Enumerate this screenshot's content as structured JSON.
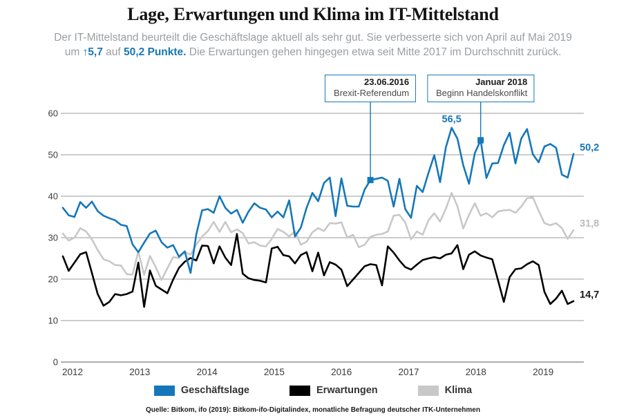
{
  "title": "Lage, Erwartungen und Klima im IT-Mittelstand",
  "subtitle": {
    "line1": "Der IT-Mittelstand beurteilt die Geschäftslage aktuell als sehr gut. Sie verbesserte sich von April auf Mai 2019",
    "line2_prefix": "um ",
    "line2_highlight1": "↑5,7",
    "line2_mid": " auf ",
    "line2_highlight2": "50,2 Punkte.",
    "line2_suffix": " Die Erwartungen gehen hingegen etwa seit Mitte 2017 im Durchschnitt zurück."
  },
  "annotations": [
    {
      "date": "23.06.2016",
      "label": "Brexit-Referendum",
      "month_index": 53,
      "series": "Geschäftslage",
      "value": 43.9
    },
    {
      "date": "Januar 2018",
      "label": "Beginn Handelskonflikt",
      "month_index": 72,
      "series": "Geschäftslage",
      "value": 53.5
    }
  ],
  "legend": [
    {
      "label": "Geschäftslage",
      "color": "#1577b9"
    },
    {
      "label": "Erwartungen",
      "color": "#000000"
    },
    {
      "label": "Klima",
      "color": "#c8c8c8"
    }
  ],
  "source": "Quelle: Bitkom, ifo (2019): Bitkom-ifo-Digitalindex, monatliche Befragung deutscher ITK-Unternehmen",
  "colors": {
    "accent_blue": "#1577b9",
    "grid": "#999999",
    "baseline": "#b0b0b0",
    "tick_text": "#3a3a3a"
  },
  "chart_data": {
    "type": "line",
    "frequency": "monthly",
    "x_start": "2012-01",
    "x_end": "2019-05",
    "x_tick_labels": [
      "2012",
      "2013",
      "2014",
      "2015",
      "2016",
      "2017",
      "2018",
      "2019"
    ],
    "ylim": [
      0,
      60
    ],
    "yticks": [
      0,
      10,
      20,
      30,
      40,
      50,
      60
    ],
    "grid": "horizontal",
    "legend_position": "bottom",
    "peak_label": {
      "text": "56,5",
      "series": "Geschäftslage",
      "month_index": 67,
      "value": 56.5
    },
    "series": [
      {
        "name": "Geschäftslage",
        "color": "#1577b9",
        "end_label": "50,2",
        "end_label_color": "#1577b9",
        "values": [
          37.2,
          35.4,
          35.0,
          38.6,
          37.2,
          38.7,
          36.4,
          35.3,
          34.7,
          34.2,
          33.1,
          32.8,
          28.4,
          26.5,
          28.8,
          31.0,
          31.7,
          28.9,
          27.6,
          28.2,
          25.4,
          26.7,
          21.5,
          30.8,
          36.6,
          36.9,
          36.0,
          40.0,
          37.2,
          35.8,
          36.7,
          33.6,
          36.3,
          38.3,
          37.2,
          36.8,
          34.9,
          36.3,
          34.9,
          39.0,
          30.3,
          32.4,
          37.2,
          40.8,
          38.8,
          43.2,
          44.5,
          35.2,
          44.3,
          37.7,
          37.5,
          37.5,
          41.6,
          43.9,
          44.2,
          44.5,
          43.7,
          37.5,
          44.2,
          36.9,
          34.8,
          42.5,
          41.0,
          45.6,
          49.9,
          43.4,
          51.8,
          56.5,
          53.9,
          47.5,
          43.0,
          50.4,
          53.5,
          44.4,
          47.9,
          48.0,
          52.3,
          55.3,
          47.9,
          53.9,
          56.2,
          50.1,
          48.2,
          52.0,
          52.6,
          51.7,
          45.2,
          44.5,
          50.2
        ]
      },
      {
        "name": "Erwartungen",
        "color": "#000000",
        "end_label": "14,7",
        "end_label_color": "#1a1a1a",
        "values": [
          25.5,
          22.0,
          24.0,
          26.0,
          26.5,
          21.5,
          16.4,
          13.6,
          14.5,
          16.4,
          16.1,
          16.4,
          17.0,
          24.0,
          13.3,
          22.1,
          18.4,
          17.5,
          16.6,
          19.9,
          22.7,
          24.2,
          25.1,
          24.5,
          28.1,
          28.0,
          23.8,
          27.9,
          25.2,
          23.4,
          30.9,
          21.3,
          20.2,
          19.8,
          19.6,
          19.2,
          27.4,
          27.8,
          25.8,
          25.5,
          23.8,
          25.8,
          26.5,
          21.9,
          26.4,
          20.9,
          24.1,
          23.5,
          22.3,
          18.3,
          19.9,
          21.5,
          23.1,
          23.6,
          23.4,
          18.5,
          27.9,
          26.4,
          24.5,
          22.9,
          22.3,
          23.5,
          24.6,
          25.0,
          25.3,
          25.0,
          25.9,
          26.2,
          28.2,
          22.4,
          25.9,
          26.7,
          25.7,
          25.2,
          24.8,
          19.7,
          14.5,
          20.5,
          22.4,
          22.6,
          23.6,
          24.3,
          23.4,
          16.9,
          14.0,
          15.3,
          17.2,
          14.0,
          14.7
        ]
      },
      {
        "name": "Klima",
        "color": "#c8c8c8",
        "end_label": "31,8",
        "end_label_color": "#b9bcbf",
        "values": [
          31.0,
          29.3,
          30.0,
          32.3,
          31.5,
          29.6,
          27.0,
          24.8,
          24.3,
          23.4,
          23.3,
          21.2,
          21.1,
          26.7,
          21.0,
          25.6,
          22.9,
          19.8,
          22.6,
          25.3,
          25.1,
          26.5,
          25.9,
          28.3,
          30.3,
          31.6,
          33.8,
          31.4,
          33.8,
          31.3,
          32.0,
          31.1,
          28.6,
          28.9,
          28.1,
          27.9,
          29.7,
          32.1,
          31.4,
          30.3,
          31.5,
          28.3,
          29.0,
          31.3,
          32.3,
          31.6,
          33.5,
          33.4,
          33.7,
          30.0,
          30.7,
          27.7,
          28.3,
          30.2,
          30.7,
          30.9,
          31.5,
          35.3,
          35.5,
          33.7,
          29.6,
          31.5,
          30.7,
          34.2,
          35.9,
          33.9,
          37.0,
          40.8,
          37.6,
          32.2,
          35.5,
          38.3,
          35.3,
          35.9,
          34.9,
          36.3,
          36.6,
          36.7,
          36.0,
          37.5,
          39.5,
          39.7,
          36.5,
          33.5,
          33.0,
          33.5,
          32.3,
          29.7,
          31.8
        ]
      }
    ]
  }
}
